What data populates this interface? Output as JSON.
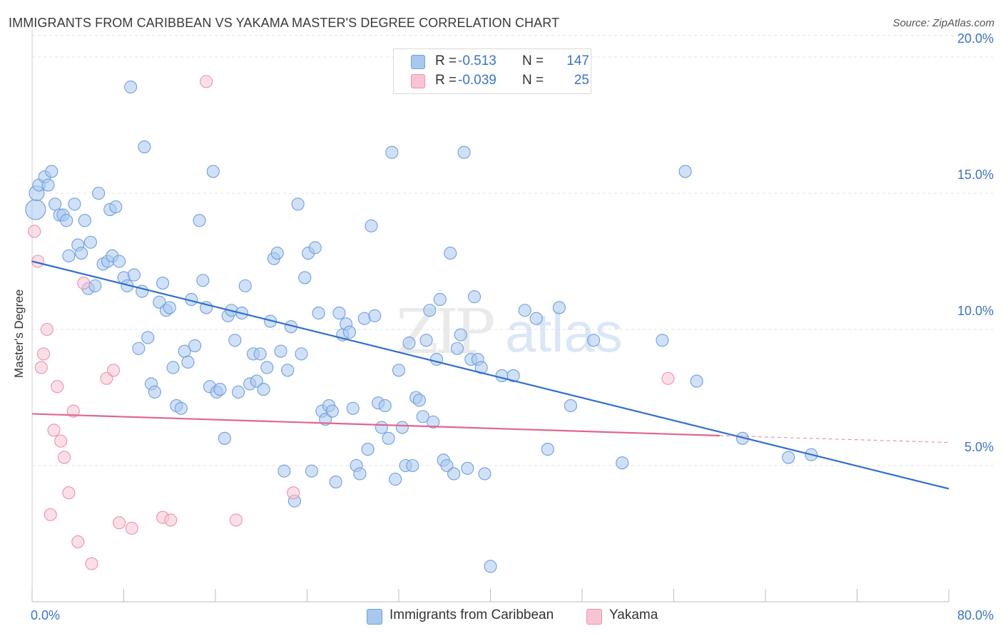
{
  "header": {
    "title": "IMMIGRANTS FROM CARIBBEAN VS YAKAMA MASTER'S DEGREE CORRELATION CHART",
    "source": "Source: ZipAtlas.com"
  },
  "watermark": {
    "zip": "ZIP",
    "atlas": "atlas"
  },
  "legend_top": {
    "r_label": "R =",
    "n_label": "N =",
    "rows": [
      {
        "r": "-0.513",
        "n": "147",
        "color": "#a9c8f0",
        "border": "#6f9fe0"
      },
      {
        "r": "-0.039",
        "n": "25",
        "color": "#f8c4d4",
        "border": "#ee90ac"
      }
    ]
  },
  "chart_data": {
    "type": "scatter",
    "title": "IMMIGRANTS FROM CARIBBEAN VS YAKAMA MASTER'S DEGREE CORRELATION CHART",
    "xlabel": "",
    "ylabel": "Master's Degree",
    "xlim": [
      0,
      80
    ],
    "ylim": [
      0,
      20.8
    ],
    "x_tick_labels": [
      "0.0%",
      "80.0%"
    ],
    "y_ticks": [
      5,
      10,
      15,
      20
    ],
    "y_tick_labels": [
      "5.0%",
      "10.0%",
      "15.0%",
      "20.0%"
    ],
    "grid": true,
    "legend_placement": "bottom-center",
    "series": [
      {
        "name": "Immigrants from Caribbean",
        "color": "#a9c8f0",
        "edge": "#6f9fe0",
        "trend": {
          "x": [
            0,
            80
          ],
          "y": [
            12.5,
            4.15
          ],
          "color": "#2e6fd0"
        },
        "points": [
          [
            0.3,
            14.4
          ],
          [
            0.4,
            15.0
          ],
          [
            0.6,
            15.3
          ],
          [
            1.1,
            15.6
          ],
          [
            1.4,
            15.3
          ],
          [
            1.7,
            15.8
          ],
          [
            2.0,
            14.6
          ],
          [
            2.4,
            14.2
          ],
          [
            2.7,
            14.2
          ],
          [
            3.0,
            14.0
          ],
          [
            3.2,
            12.7
          ],
          [
            3.7,
            14.6
          ],
          [
            4.0,
            13.1
          ],
          [
            4.3,
            12.8
          ],
          [
            4.6,
            14.0
          ],
          [
            4.9,
            11.5
          ],
          [
            5.1,
            13.2
          ],
          [
            5.5,
            11.6
          ],
          [
            5.8,
            15.0
          ],
          [
            6.2,
            12.4
          ],
          [
            6.6,
            12.5
          ],
          [
            6.8,
            14.4
          ],
          [
            7.0,
            12.7
          ],
          [
            7.3,
            14.5
          ],
          [
            7.6,
            12.5
          ],
          [
            8.0,
            11.9
          ],
          [
            8.3,
            11.6
          ],
          [
            8.6,
            18.9
          ],
          [
            8.9,
            12.0
          ],
          [
            9.3,
            9.3
          ],
          [
            9.6,
            11.4
          ],
          [
            9.8,
            16.7
          ],
          [
            10.1,
            9.7
          ],
          [
            10.4,
            8.0
          ],
          [
            10.7,
            7.7
          ],
          [
            11.1,
            11.0
          ],
          [
            11.4,
            11.7
          ],
          [
            11.7,
            10.7
          ],
          [
            12.0,
            10.8
          ],
          [
            12.3,
            8.6
          ],
          [
            12.6,
            7.2
          ],
          [
            13.0,
            7.1
          ],
          [
            13.3,
            9.2
          ],
          [
            13.6,
            8.8
          ],
          [
            13.9,
            11.1
          ],
          [
            14.2,
            9.4
          ],
          [
            14.6,
            14.0
          ],
          [
            14.9,
            11.8
          ],
          [
            15.2,
            10.8
          ],
          [
            15.5,
            7.9
          ],
          [
            15.8,
            15.8
          ],
          [
            16.1,
            7.7
          ],
          [
            16.4,
            7.8
          ],
          [
            16.8,
            6.0
          ],
          [
            17.1,
            10.5
          ],
          [
            17.4,
            10.7
          ],
          [
            17.7,
            9.6
          ],
          [
            18.0,
            7.7
          ],
          [
            18.3,
            10.6
          ],
          [
            18.6,
            11.6
          ],
          [
            19.0,
            8.0
          ],
          [
            19.3,
            9.1
          ],
          [
            19.6,
            8.1
          ],
          [
            19.9,
            9.1
          ],
          [
            20.2,
            7.8
          ],
          [
            20.5,
            8.6
          ],
          [
            20.8,
            10.3
          ],
          [
            21.1,
            12.6
          ],
          [
            21.4,
            12.8
          ],
          [
            21.7,
            9.2
          ],
          [
            22.0,
            4.8
          ],
          [
            22.3,
            8.5
          ],
          [
            22.6,
            10.1
          ],
          [
            22.9,
            3.7
          ],
          [
            23.2,
            14.6
          ],
          [
            23.5,
            9.1
          ],
          [
            23.8,
            11.9
          ],
          [
            24.1,
            12.8
          ],
          [
            24.4,
            4.8
          ],
          [
            24.7,
            13.0
          ],
          [
            25.0,
            10.6
          ],
          [
            25.3,
            7.0
          ],
          [
            25.6,
            6.7
          ],
          [
            25.9,
            7.2
          ],
          [
            26.2,
            7.0
          ],
          [
            26.5,
            4.4
          ],
          [
            26.8,
            10.6
          ],
          [
            27.1,
            9.8
          ],
          [
            27.4,
            10.2
          ],
          [
            27.7,
            9.9
          ],
          [
            28.0,
            7.1
          ],
          [
            28.3,
            5.0
          ],
          [
            28.6,
            4.7
          ],
          [
            29.0,
            10.4
          ],
          [
            29.3,
            5.6
          ],
          [
            29.6,
            13.8
          ],
          [
            29.9,
            10.5
          ],
          [
            30.2,
            7.3
          ],
          [
            30.5,
            6.4
          ],
          [
            30.8,
            7.2
          ],
          [
            31.1,
            6.0
          ],
          [
            31.4,
            16.5
          ],
          [
            31.7,
            4.5
          ],
          [
            32.0,
            8.5
          ],
          [
            32.3,
            6.4
          ],
          [
            32.6,
            5.0
          ],
          [
            32.9,
            9.5
          ],
          [
            33.2,
            5.0
          ],
          [
            33.5,
            7.5
          ],
          [
            33.8,
            7.4
          ],
          [
            34.1,
            6.8
          ],
          [
            34.4,
            9.6
          ],
          [
            34.7,
            10.7
          ],
          [
            35.0,
            6.6
          ],
          [
            35.3,
            8.9
          ],
          [
            35.6,
            11.1
          ],
          [
            35.9,
            5.2
          ],
          [
            36.2,
            5.0
          ],
          [
            36.5,
            12.8
          ],
          [
            36.8,
            4.7
          ],
          [
            37.1,
            9.3
          ],
          [
            37.4,
            9.8
          ],
          [
            37.7,
            16.5
          ],
          [
            38.0,
            4.9
          ],
          [
            38.3,
            8.9
          ],
          [
            38.6,
            11.2
          ],
          [
            38.9,
            8.9
          ],
          [
            39.2,
            8.6
          ],
          [
            39.5,
            4.7
          ],
          [
            40.0,
            1.3
          ],
          [
            41.0,
            8.3
          ],
          [
            42.0,
            8.3
          ],
          [
            43.0,
            10.7
          ],
          [
            44.0,
            10.4
          ],
          [
            45.0,
            5.6
          ],
          [
            46.0,
            10.8
          ],
          [
            47.0,
            7.2
          ],
          [
            49.0,
            9.6
          ],
          [
            51.5,
            5.1
          ],
          [
            55.0,
            9.6
          ],
          [
            57.0,
            15.8
          ],
          [
            58.0,
            8.1
          ],
          [
            62.0,
            6.0
          ],
          [
            66.0,
            5.3
          ],
          [
            68.0,
            5.4
          ]
        ]
      },
      {
        "name": "Yakama",
        "color": "#f8c4d4",
        "edge": "#ee90ac",
        "trend": {
          "x": [
            0,
            60
          ],
          "y": [
            6.9,
            6.1
          ],
          "x_dash_end": 80,
          "y_dash_end": 5.85,
          "color": "#e0668d"
        },
        "points": [
          [
            0.2,
            13.6
          ],
          [
            0.5,
            12.5
          ],
          [
            0.8,
            8.6
          ],
          [
            1.0,
            9.1
          ],
          [
            1.3,
            10.0
          ],
          [
            1.6,
            3.2
          ],
          [
            1.9,
            6.3
          ],
          [
            2.2,
            7.9
          ],
          [
            2.5,
            5.9
          ],
          [
            2.8,
            5.3
          ],
          [
            3.2,
            4.0
          ],
          [
            3.6,
            7.0
          ],
          [
            4.0,
            2.2
          ],
          [
            4.5,
            11.7
          ],
          [
            5.2,
            1.4
          ],
          [
            6.5,
            8.2
          ],
          [
            7.1,
            8.5
          ],
          [
            7.6,
            2.9
          ],
          [
            8.7,
            2.7
          ],
          [
            11.4,
            3.1
          ],
          [
            12.1,
            3.0
          ],
          [
            15.2,
            19.1
          ],
          [
            17.8,
            3.0
          ],
          [
            22.8,
            4.0
          ],
          [
            55.5,
            8.2
          ]
        ]
      }
    ]
  },
  "legend_bottom": {
    "items": [
      {
        "label": "Immigrants from Caribbean",
        "color": "#a9c8f0",
        "border": "#6f9fe0"
      },
      {
        "label": "Yakama",
        "color": "#f8c4d4",
        "border": "#ee90ac"
      }
    ]
  }
}
